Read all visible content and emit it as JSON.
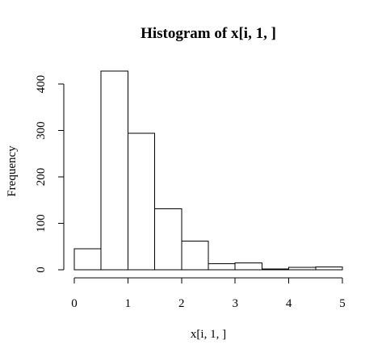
{
  "chart_data": {
    "type": "bar",
    "title": "Histogram of x[i, 1, ]",
    "xlabel": "x[i, 1, ]",
    "ylabel": "Frequency",
    "bins": [
      {
        "start": 0.0,
        "end": 0.5,
        "count": 45
      },
      {
        "start": 0.5,
        "end": 1.0,
        "count": 428
      },
      {
        "start": 1.0,
        "end": 1.5,
        "count": 294
      },
      {
        "start": 1.5,
        "end": 2.0,
        "count": 131
      },
      {
        "start": 2.0,
        "end": 2.5,
        "count": 62
      },
      {
        "start": 2.5,
        "end": 3.0,
        "count": 13
      },
      {
        "start": 3.0,
        "end": 3.5,
        "count": 15
      },
      {
        "start": 3.5,
        "end": 4.0,
        "count": 2
      },
      {
        "start": 4.0,
        "end": 4.5,
        "count": 5
      },
      {
        "start": 4.5,
        "end": 5.0,
        "count": 6
      }
    ],
    "xlim": [
      0,
      5
    ],
    "ylim": [
      0,
      428
    ],
    "xticks": [
      "0",
      "1",
      "2",
      "3",
      "4",
      "5"
    ],
    "yticks": [
      "0",
      "100",
      "200",
      "300",
      "400"
    ],
    "grid": false,
    "fill_color": "#ffffff",
    "stroke_color": "#000000"
  }
}
